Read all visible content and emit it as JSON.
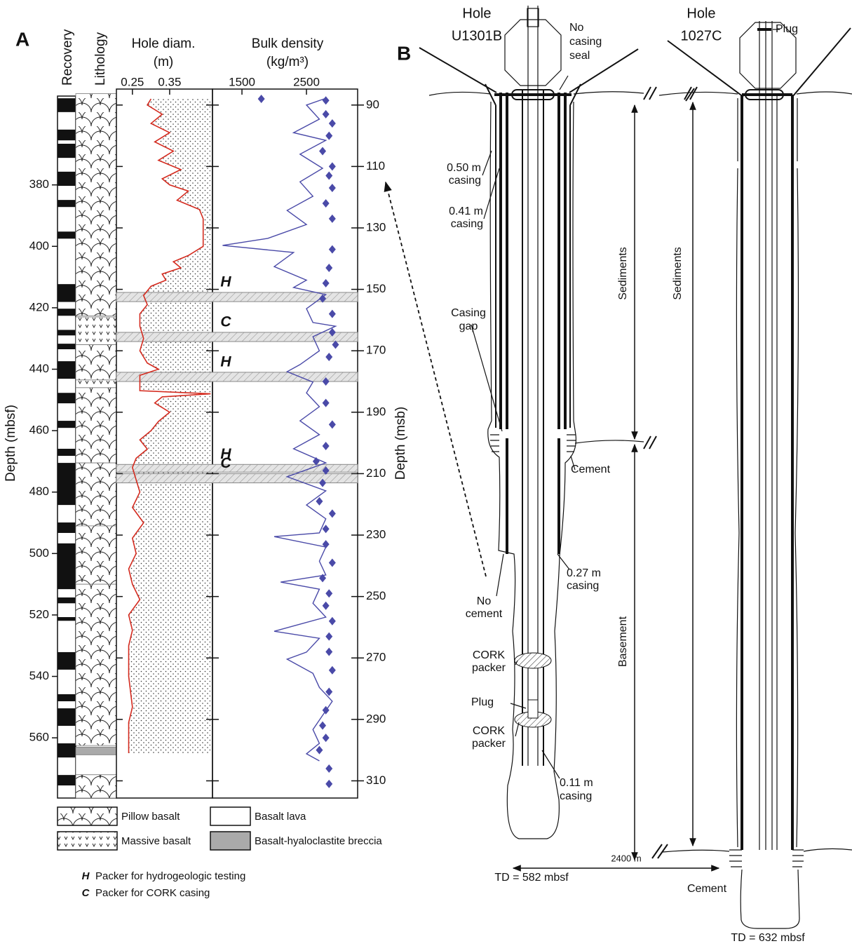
{
  "panel_a": {
    "label": "A",
    "recovery_title": "Recovery",
    "lithology_title": "Lithology",
    "depth_mbsf": {
      "label": "Depth (mbsf)",
      "lim": [
        348.8,
        579.6
      ],
      "ticks": [
        380,
        400,
        420,
        440,
        460,
        480,
        500,
        520,
        540,
        560
      ]
    },
    "depth_msb": {
      "label": "Depth (msb)",
      "lim": [
        84.8,
        315.6
      ],
      "ticks": [
        90,
        110,
        130,
        150,
        170,
        190,
        210,
        230,
        250,
        270,
        290,
        310
      ]
    },
    "recovered": [
      [
        351.8,
        356.3
      ],
      [
        362,
        365.5
      ],
      [
        366.6,
        371.2
      ],
      [
        375.7,
        380.3
      ],
      [
        384.9,
        387.2
      ],
      [
        395.2,
        397.5
      ],
      [
        412.3,
        418.1
      ],
      [
        420.3,
        422.6
      ],
      [
        427.2,
        429
      ],
      [
        431.7,
        433.5
      ],
      [
        437.4,
        443.1
      ],
      [
        447.7,
        451.1
      ],
      [
        456.8,
        459.1
      ],
      [
        465.9,
        468.2
      ],
      [
        470.5,
        484.2
      ],
      [
        489.9,
        493.3
      ],
      [
        496.7,
        511.6
      ],
      [
        514.3,
        516.2
      ],
      [
        520.7,
        521.9
      ],
      [
        532.1,
        537.8
      ],
      [
        545.8,
        548.1
      ],
      [
        550.4,
        556.1
      ],
      [
        561.8,
        566.4
      ],
      [
        572.1,
        575.5
      ]
    ],
    "lithology": [
      {
        "label": "Pillow basalt",
        "intervals": [
          [
            350.3,
            422.6
          ],
          [
            432,
            443.5
          ],
          [
            446,
            470.5
          ],
          [
            470.5,
            491
          ],
          [
            491,
            510
          ],
          [
            510,
            562.5
          ],
          [
            572,
            579.6
          ]
        ]
      },
      {
        "label": "Massive basalt",
        "intervals": [
          [
            423,
            432
          ],
          [
            443.5,
            446
          ]
        ]
      },
      {
        "label": "Basalt lava",
        "intervals": [
          [
            565.5,
            572
          ]
        ]
      },
      {
        "label": "Basalt-hyaloclastite breccia",
        "intervals": [
          [
            563,
            565.5
          ]
        ]
      }
    ],
    "hole_diam": {
      "title": "Hole diam.",
      "unit": "(m)",
      "color": "#d42a1e",
      "xlim": [
        0.207,
        0.465
      ],
      "xticks": [
        0.25,
        0.35
      ],
      "depths": [
        352,
        354,
        357,
        360,
        363,
        366,
        369,
        372,
        375,
        378,
        380,
        382,
        385,
        388,
        391,
        395,
        400,
        403,
        405,
        407,
        409,
        411,
        413,
        416,
        419,
        422,
        426,
        430,
        434,
        438,
        440,
        442,
        445,
        447,
        448,
        449,
        451,
        454,
        457,
        460,
        463,
        466,
        469,
        472,
        476,
        480,
        485,
        490,
        495,
        500,
        505,
        510,
        515,
        520,
        525,
        530,
        540,
        550,
        555,
        560,
        565
      ],
      "values": [
        0.3,
        0.29,
        0.33,
        0.3,
        0.35,
        0.31,
        0.36,
        0.32,
        0.38,
        0.33,
        0.35,
        0.4,
        0.37,
        0.43,
        0.44,
        0.44,
        0.44,
        0.4,
        0.36,
        0.38,
        0.33,
        0.34,
        0.3,
        0.28,
        0.29,
        0.27,
        0.27,
        0.28,
        0.27,
        0.29,
        0.32,
        0.27,
        0.27,
        0.27,
        0.46,
        0.33,
        0.31,
        0.35,
        0.32,
        0.3,
        0.27,
        0.29,
        0.26,
        0.25,
        0.26,
        0.27,
        0.25,
        0.28,
        0.25,
        0.26,
        0.24,
        0.25,
        0.27,
        0.24,
        0.25,
        0.24,
        0.24,
        0.25,
        0.24,
        0.24,
        0.24
      ]
    },
    "bulk_density": {
      "title": "Bulk density",
      "unit": "(kg/m³)",
      "color": "#4a4aa8",
      "xlim": [
        1043,
        3293
      ],
      "xticks": [
        1500,
        2500
      ],
      "depths": [
        351.8,
        354,
        358.6,
        363,
        365.5,
        370,
        374.6,
        379,
        383.7,
        388.3,
        392.9,
        397.4,
        399.7,
        402,
        406.6,
        411,
        413.4,
        415.7,
        420.3,
        424.8,
        426,
        429.4,
        434,
        438.5,
        440.8,
        444.2,
        447.7,
        452.2,
        456.8,
        461.3,
        465.9,
        470.5,
        475,
        479.6,
        484.2,
        488.7,
        493.3,
        494.5,
        497.9,
        502.5,
        507,
        509.3,
        511.6,
        516.2,
        520.7,
        525.3,
        527.6,
        532.1,
        534.4,
        539,
        543.6,
        548.1,
        552.7,
        557.3,
        561.8,
        565.2,
        567.5
      ],
      "values": [
        2800,
        2500,
        2700,
        2300,
        2800,
        2400,
        2750,
        2400,
        2600,
        2200,
        2500,
        1900,
        1200,
        2300,
        2000,
        2500,
        2300,
        2800,
        2500,
        2600,
        2950,
        2600,
        2700,
        2400,
        2200,
        2600,
        2500,
        2700,
        2400,
        2700,
        2300,
        2800,
        2200,
        2800,
        2500,
        2800,
        2700,
        2000,
        2800,
        2700,
        2800,
        2100,
        2700,
        2600,
        2800,
        2000,
        2700,
        2500,
        2200,
        2600,
        2700,
        2900,
        2750,
        2600,
        2700,
        2500,
        2700
      ],
      "sample_depths": [
        352,
        352.5,
        357,
        360,
        364,
        369,
        374,
        377,
        381,
        386,
        391,
        401,
        407,
        412,
        417,
        422,
        428,
        432,
        436,
        444,
        451,
        458,
        465,
        470,
        473,
        477,
        483,
        487,
        492,
        497,
        503,
        508,
        513,
        517,
        522,
        527,
        532,
        538,
        545,
        551,
        556,
        560,
        564,
        570,
        575
      ],
      "sample_values": [
        1800,
        2800,
        2800,
        2900,
        2850,
        2750,
        2900,
        2850,
        2900,
        2800,
        2900,
        2900,
        2850,
        2800,
        2750,
        2900,
        2900,
        2950,
        2850,
        2800,
        2800,
        2900,
        2800,
        2650,
        2800,
        2750,
        2700,
        2900,
        2800,
        2800,
        2900,
        2750,
        2850,
        2800,
        2900,
        2850,
        2850,
        2900,
        2850,
        2800,
        2750,
        2800,
        2700,
        2850,
        2850
      ]
    },
    "packers": [
      {
        "label": "H",
        "top": 415,
        "bottom": 418
      },
      {
        "label": "C",
        "top": 428,
        "bottom": 431
      },
      {
        "label": "H",
        "top": 441,
        "bottom": 444
      },
      {
        "label": "H",
        "top": 471,
        "bottom": 473.5
      },
      {
        "label": "C",
        "top": 474,
        "bottom": 477
      }
    ],
    "packer_legend": [
      {
        "letter": "H",
        "text": "Packer for hydrogeologic testing"
      },
      {
        "letter": "C",
        "text": "Packer for CORK casing"
      }
    ]
  },
  "panel_b": {
    "label": "B",
    "annotations": [
      [
        "Hole",
        "U1301B"
      ],
      [
        "Hole",
        "1027C"
      ],
      [
        "No",
        "casing",
        "seal"
      ],
      [
        "Plug"
      ],
      [
        "0.50 m",
        "casing"
      ],
      [
        "0.41 m",
        "casing"
      ],
      [
        "Casing",
        "gap"
      ],
      [
        "Cement"
      ],
      [
        "0.27 m",
        "casing"
      ],
      [
        "No",
        "cement"
      ],
      [
        "CORK",
        "packer"
      ],
      [
        "Plug"
      ],
      [
        "CORK",
        "packer"
      ],
      [
        "0.11 m",
        "casing"
      ],
      [
        "TD = 582 mbsf"
      ],
      [
        "Sediments"
      ],
      [
        "Sediments"
      ],
      [
        "Basement"
      ],
      [
        "Cement"
      ],
      [
        "2400 m"
      ],
      [
        "TD = 632 mbsf"
      ]
    ]
  }
}
